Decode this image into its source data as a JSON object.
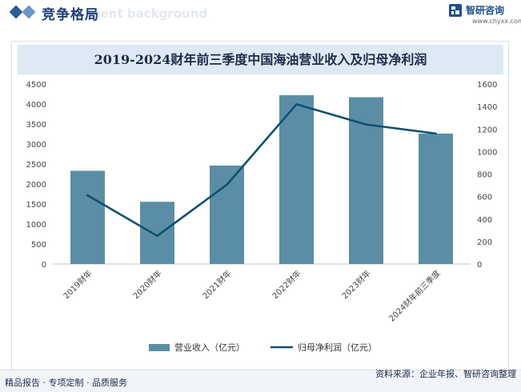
{
  "header": {
    "section_title": "竞争格局",
    "section_watermark": "ment background",
    "brand_name": "智研咨询",
    "brand_url": "www.chyxx.com"
  },
  "footer": {
    "left_text": "精品报告 · 专项定制 · 品质服务",
    "source_text": "资料来源：企业年报、智研咨询整理"
  },
  "colors": {
    "bar": "#5b8ea6",
    "line": "#0f5072",
    "title_bg": "#dde9f4",
    "accent": "#1e3f78"
  },
  "chart_data": {
    "type": "bar",
    "title": "2019-2024财年前三季度中国海油营业收入及归母净利润",
    "categories": [
      "2019财年",
      "2020财年",
      "2021财年",
      "2022财年",
      "2023财年",
      "2024财年前三季度"
    ],
    "series": [
      {
        "name": "营业收入（亿元）",
        "type": "bar",
        "axis": "left",
        "values": [
          2330,
          1555,
          2460,
          4220,
          4170,
          3260
        ]
      },
      {
        "name": "归母净利润（亿元）",
        "type": "line",
        "axis": "right",
        "values": [
          610,
          250,
          705,
          1420,
          1240,
          1160
        ]
      }
    ],
    "y_left": {
      "min": 0,
      "max": 4500,
      "ticks": [
        "0",
        "500",
        "1000",
        "1500",
        "2000",
        "2500",
        "3000",
        "3500",
        "4000",
        "4500"
      ]
    },
    "y_right": {
      "min": 0,
      "max": 1600,
      "ticks": [
        "0",
        "200",
        "400",
        "600",
        "800",
        "1000",
        "1200",
        "1400",
        "1600"
      ]
    },
    "legend_position": "bottom",
    "grid": false
  }
}
